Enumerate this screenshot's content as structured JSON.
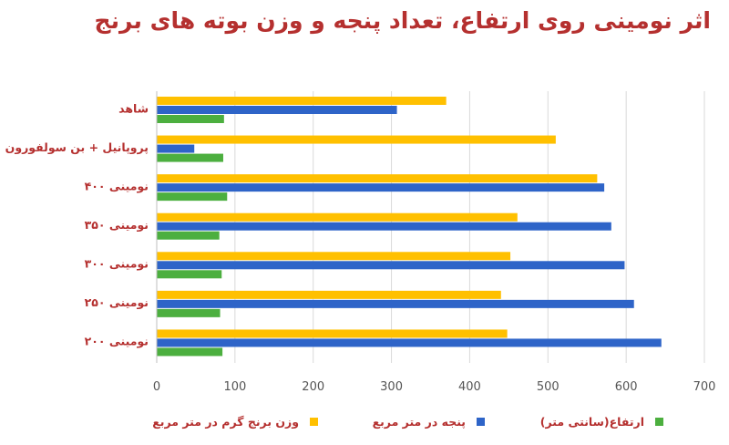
{
  "chart_data": {
    "type": "bar",
    "orientation": "horizontal",
    "title": "اثر نومینی روی ارتفاع، تعداد پنجه و وزن بوته های برنج",
    "categories": [
      "شاهد",
      "پروپانیل + بن سولفورون",
      "نومینی ۴۰۰",
      "نومینی ۳۵۰",
      "نومینی ۳۰۰",
      "نومینی ۲۵۰",
      "نومینی ۲۰۰"
    ],
    "series": [
      {
        "name": "وزن برنج گرم در متر مربع",
        "color": "#ffc000",
        "values": [
          370,
          510,
          563,
          461,
          452,
          440,
          448
        ]
      },
      {
        "name": "پنجه در متر مربع",
        "color": "#2e64c8",
        "values": [
          307,
          48,
          572,
          581,
          598,
          610,
          645
        ]
      },
      {
        "name": "ارتفاع(سانتی متر)",
        "color": "#4caf3f",
        "values": [
          86,
          85,
          90,
          80,
          83,
          81,
          84
        ]
      }
    ],
    "xlim": [
      0,
      700
    ],
    "xticks": [
      "0",
      "100",
      "200",
      "300",
      "400",
      "500",
      "600",
      "700"
    ],
    "grid": true,
    "legend_position": "bottom"
  }
}
